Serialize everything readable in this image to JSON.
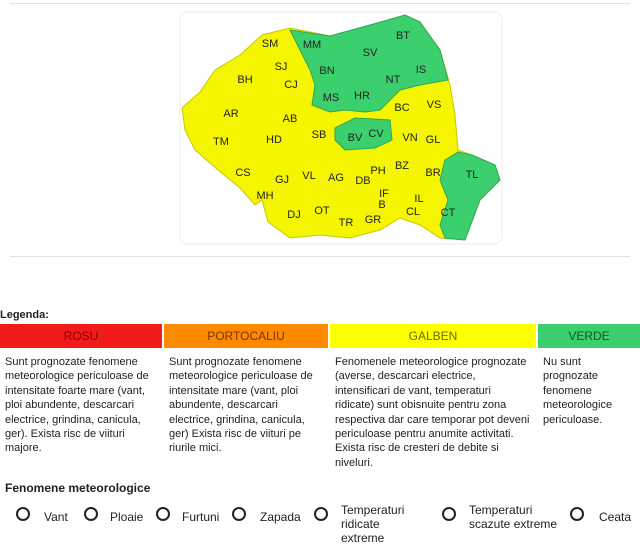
{
  "map": {
    "counties": [
      "SM",
      "MM",
      "BT",
      "SV",
      "BN",
      "SJ",
      "BH",
      "CJ",
      "IS",
      "NT",
      "MS",
      "HR",
      "BC",
      "VS",
      "AR",
      "AB",
      "SB",
      "BV",
      "CV",
      "VN",
      "GL",
      "TM",
      "HD",
      "BZ",
      "PH",
      "BR",
      "CS",
      "GJ",
      "VL",
      "AG",
      "DB",
      "TL",
      "MH",
      "IF",
      "B",
      "IL",
      "DJ",
      "OT",
      "TR",
      "GR",
      "CL",
      "CT"
    ]
  },
  "legend": {
    "title": "Legenda:",
    "levels": [
      {
        "name": "ROSU",
        "color": "#f21b1b",
        "text_color": "#8a0000",
        "description": "Sunt prognozate fenomene meteorologice periculoase de intensitate foarte mare (vant, ploi abundente, descarcari electrice, grindina, canicula, ger). Exista risc de viituri majore."
      },
      {
        "name": "PORTOCALIU",
        "color": "#ff8a00",
        "text_color": "#7a3500",
        "description": "Sunt prognozate fenomene meteorologice periculoase de intensitate mare (vant, ploi abundente, descarcari electrice, grindina, canicula, ger) Exista risc de viituri pe riurile mici."
      },
      {
        "name": "GALBEN",
        "color": "#ffff00",
        "text_color": "#6a6a00",
        "description": "Fenomenele meteorologice prognozate (averse, descarcari electrice, intensificari de vant, temperaturi ridicate) sunt obisnuite pentru zona respectiva dar care temporar pot deveni periculoase pentru anumite activitati. Exista risc de cresteri de debite si niveluri."
      },
      {
        "name": "VERDE",
        "color": "#3ccf6e",
        "text_color": "#0a5a28",
        "description": "Nu sunt prognozate fenomene meteorologice periculoase."
      }
    ]
  },
  "phenomena": {
    "title": "Fenomene meteorologice",
    "items": [
      "Vant",
      "Ploaie",
      "Furtuni",
      "Zapada",
      "Temperaturi ridicate extreme",
      "Temperaturi scazute extreme",
      "Ceata"
    ]
  }
}
